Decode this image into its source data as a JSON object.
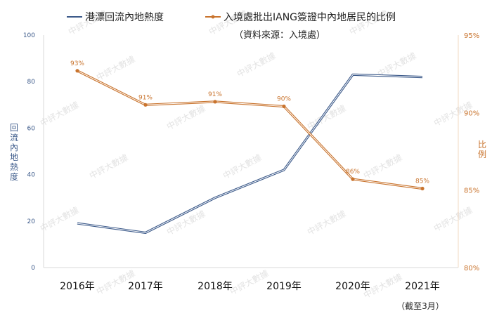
{
  "chart_data": {
    "type": "line",
    "categories": [
      "2016年",
      "2017年",
      "2018年",
      "2019年",
      "2020年",
      "2021年"
    ],
    "series": [
      {
        "name": "港漂回流內地熱度",
        "axis": "left",
        "color": "#3c5a8a",
        "values": [
          19,
          15,
          30,
          42,
          83,
          82
        ]
      },
      {
        "name": "入境處批出IANG簽證中內地居民的比例",
        "axis": "right",
        "color": "#c9742e",
        "values": [
          92.7,
          90.5,
          90.7,
          90.4,
          85.7,
          85.1
        ],
        "labels": [
          "93%",
          "91%",
          "91%",
          "90%",
          "86%",
          "85%"
        ]
      }
    ],
    "left_axis": {
      "title": "回流內地熱度",
      "ylim": [
        0,
        100
      ],
      "ticks": [
        "0",
        "20",
        "40",
        "60",
        "80",
        "100"
      ],
      "tick_values": [
        0,
        20,
        40,
        60,
        80,
        100
      ]
    },
    "right_axis": {
      "title": "比例",
      "ylim": [
        80,
        95
      ],
      "ticks": [
        "80%",
        "85%",
        "90%",
        "95%"
      ],
      "tick_values": [
        80,
        85,
        90,
        95
      ]
    },
    "source": "（資料來源：入境處）",
    "footnote": "（截至3月）",
    "watermark": "中評大數據",
    "legend_position": "top",
    "grid": false
  }
}
